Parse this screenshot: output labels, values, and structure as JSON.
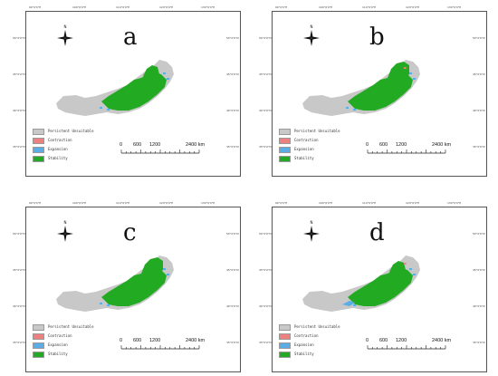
{
  "panels": [
    {
      "letter": "a"
    },
    {
      "letter": "b"
    },
    {
      "letter": "c"
    },
    {
      "letter": "d"
    }
  ],
  "north_label": "N",
  "legend": [
    {
      "label": "Persistent Unsuitable",
      "color": "#c8c8c8"
    },
    {
      "label": "Contraction",
      "color": "#f08080"
    },
    {
      "label": "Expansion",
      "color": "#5aaee6"
    },
    {
      "label": "Stability",
      "color": "#22aa22"
    }
  ],
  "scale": {
    "ticks": [
      "0",
      "600",
      "1200",
      "2400 km"
    ]
  },
  "graticule": {
    "top_labels": [
      "90°0'0\"E",
      "100°0'0\"E",
      "110°0'0\"E",
      "120°0'0\"E",
      "130°0'0\"E"
    ],
    "side_labels": [
      "50°0'0\"N",
      "45°0'0\"N",
      "40°0'0\"N",
      "35°0'0\"N"
    ]
  },
  "colors": {
    "unsuitable": "#c8c8c8",
    "stability": "#22aa22",
    "expansion": "#5aaee6",
    "contraction": "#f08080"
  }
}
